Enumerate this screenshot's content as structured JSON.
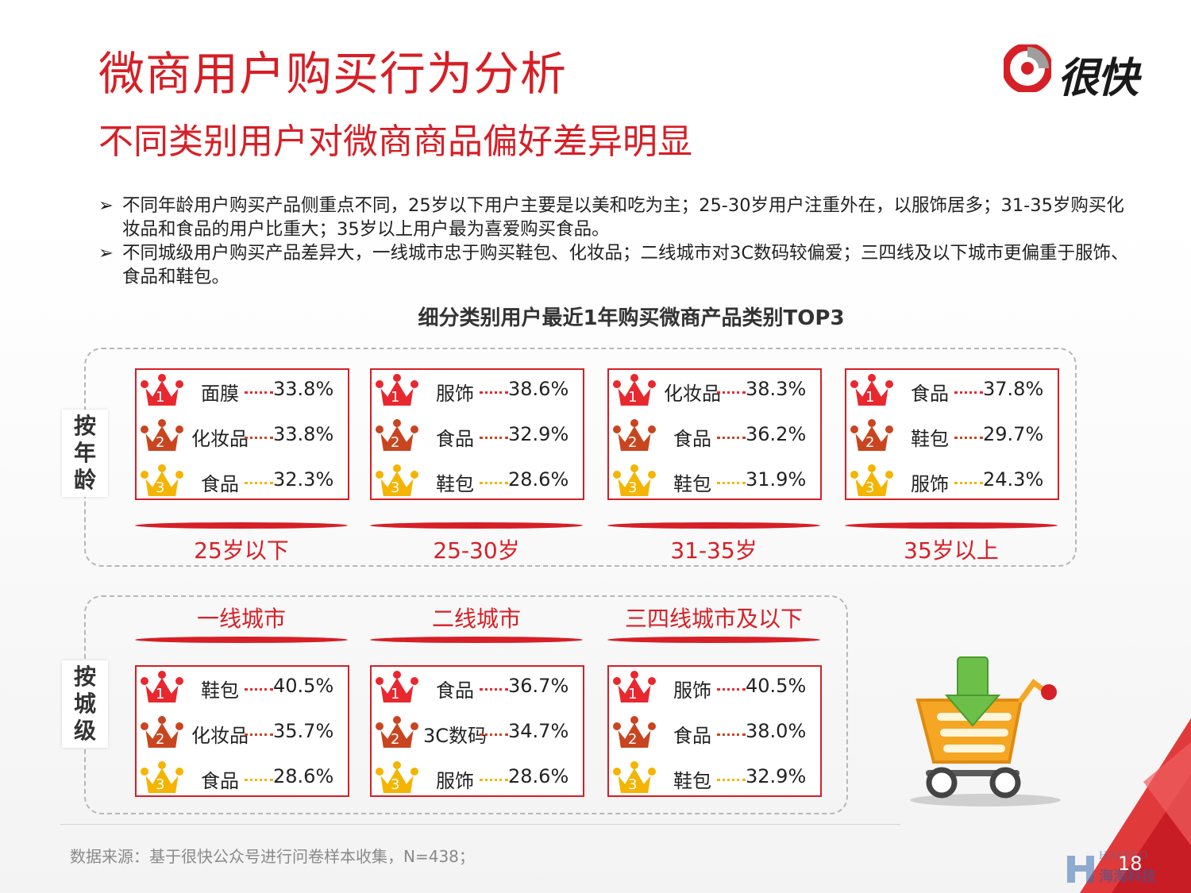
{
  "title": "微商用户购买行为分析",
  "subtitle": "不同类别用户对微商商品偏好差异明显",
  "logo_text": "很快",
  "bullets": [
    "不同年龄用户购买产品侧重点不同，25岁以下用户主要是以美和吃为主；25-30岁用户注重外在，以服饰居多；31-35岁购买化妆品和食品的用户比重大；35岁以上用户最为喜爱购买食品。",
    "不同城级用户购买产品差异大，一线城市忠于购买鞋包、化妆品；二线城市对3C数码较偏爱；三四线及以下城市更偏重于服饰、食品和鞋包。"
  ],
  "bullet_arrow": "➢",
  "chart_title": "细分类别用户最近1年购买微商产品类别TOP3",
  "age_group": {
    "label": [
      "按",
      "年",
      "龄"
    ],
    "segments": [
      {
        "name": "25岁以下",
        "items": [
          {
            "rank": "1",
            "category": "面膜",
            "value": "33.8%"
          },
          {
            "rank": "2",
            "category": "化妆品",
            "value": "33.8%"
          },
          {
            "rank": "3",
            "category": "食品",
            "value": "32.3%"
          }
        ]
      },
      {
        "name": "25-30岁",
        "items": [
          {
            "rank": "1",
            "category": "服饰",
            "value": "38.6%"
          },
          {
            "rank": "2",
            "category": "食品",
            "value": "32.9%"
          },
          {
            "rank": "3",
            "category": "鞋包",
            "value": "28.6%"
          }
        ]
      },
      {
        "name": "31-35岁",
        "items": [
          {
            "rank": "1",
            "category": "化妆品",
            "value": "38.3%"
          },
          {
            "rank": "2",
            "category": "食品",
            "value": "36.2%"
          },
          {
            "rank": "3",
            "category": "鞋包",
            "value": "31.9%"
          }
        ]
      },
      {
        "name": "35岁以上",
        "items": [
          {
            "rank": "1",
            "category": "食品",
            "value": "37.8%"
          },
          {
            "rank": "2",
            "category": "鞋包",
            "value": "29.7%"
          },
          {
            "rank": "3",
            "category": "服饰",
            "value": "24.3%"
          }
        ]
      }
    ]
  },
  "city_group": {
    "label": [
      "按",
      "城",
      "级"
    ],
    "segments": [
      {
        "name": "一线城市",
        "items": [
          {
            "rank": "1",
            "category": "鞋包",
            "value": "40.5%"
          },
          {
            "rank": "2",
            "category": "化妆品",
            "value": "35.7%"
          },
          {
            "rank": "3",
            "category": "食品",
            "value": "28.6%"
          }
        ]
      },
      {
        "name": "二线城市",
        "items": [
          {
            "rank": "1",
            "category": "食品",
            "value": "36.7%"
          },
          {
            "rank": "2",
            "category": "3C数码",
            "value": "34.7%"
          },
          {
            "rank": "3",
            "category": "服饰",
            "value": "28.6%"
          }
        ]
      },
      {
        "name": "三四线城市及以下",
        "items": [
          {
            "rank": "1",
            "category": "服饰",
            "value": "40.5%"
          },
          {
            "rank": "2",
            "category": "食品",
            "value": "38.0%"
          },
          {
            "rank": "3",
            "category": "鞋包",
            "value": "32.9%"
          }
        ]
      }
    ]
  },
  "colors": {
    "brand_red": "#d61f26",
    "rank1": "#e8282e",
    "rank2": "#c9451f",
    "rank3": "#f4b400"
  },
  "source": "数据来源：基于很快公众号进行问卷样本收集，N=438；",
  "page_number": "18",
  "watermark": {
    "top": "HAITAO",
    "bottom": "海淘科技"
  }
}
